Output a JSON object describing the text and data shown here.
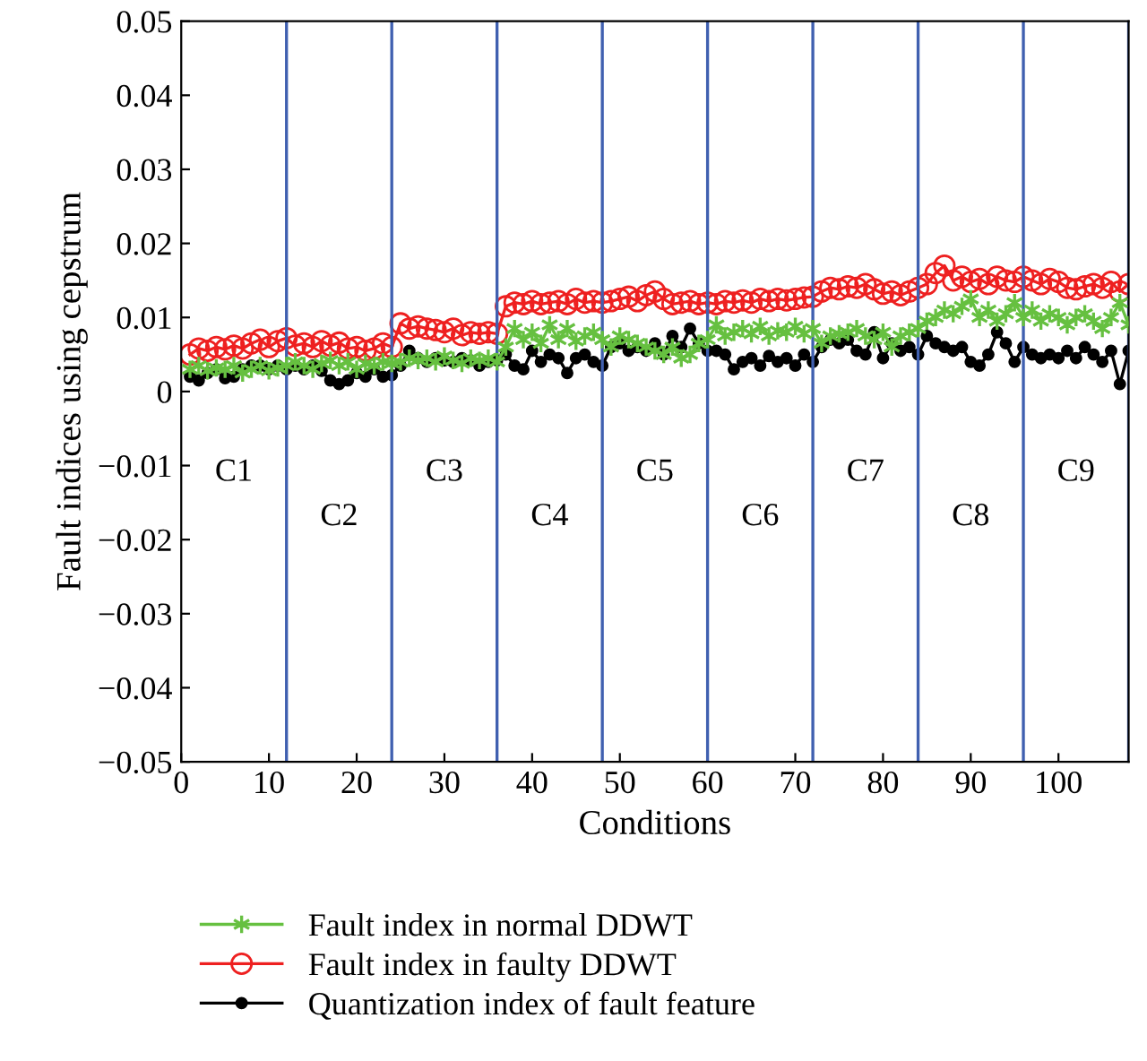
{
  "chart_data": {
    "type": "line",
    "xlabel": "Conditions",
    "ylabel": "Fault indices using cepstrum",
    "x": [
      1,
      2,
      3,
      4,
      5,
      6,
      7,
      8,
      9,
      10,
      11,
      12,
      13,
      14,
      15,
      16,
      17,
      18,
      19,
      20,
      21,
      22,
      23,
      24,
      25,
      26,
      27,
      28,
      29,
      30,
      31,
      32,
      33,
      34,
      35,
      36,
      37,
      38,
      39,
      40,
      41,
      42,
      43,
      44,
      45,
      46,
      47,
      48,
      49,
      50,
      51,
      52,
      53,
      54,
      55,
      56,
      57,
      58,
      59,
      60,
      61,
      62,
      63,
      64,
      65,
      66,
      67,
      68,
      69,
      70,
      71,
      72,
      73,
      74,
      75,
      76,
      77,
      78,
      79,
      80,
      81,
      82,
      83,
      84,
      85,
      86,
      87,
      88,
      89,
      90,
      91,
      92,
      93,
      94,
      95,
      96,
      97,
      98,
      99,
      100,
      101,
      102,
      103,
      104,
      105,
      106,
      107,
      108
    ],
    "series": [
      {
        "name": "Fault index in normal DDWT",
        "color": "#66c040",
        "marker": "cross",
        "values": [
          0.003,
          0.0035,
          0.0028,
          0.0032,
          0.003,
          0.0035,
          0.0025,
          0.003,
          0.0035,
          0.0028,
          0.0032,
          0.0035,
          0.004,
          0.0035,
          0.003,
          0.0038,
          0.0042,
          0.0035,
          0.004,
          0.003,
          0.0038,
          0.0035,
          0.004,
          0.0038,
          0.004,
          0.0045,
          0.0042,
          0.0045,
          0.004,
          0.0048,
          0.0042,
          0.0038,
          0.0045,
          0.0042,
          0.0045,
          0.004,
          0.006,
          0.0085,
          0.007,
          0.008,
          0.0065,
          0.009,
          0.007,
          0.0085,
          0.0068,
          0.0075,
          0.008,
          0.007,
          0.006,
          0.0075,
          0.007,
          0.0065,
          0.006,
          0.0055,
          0.005,
          0.006,
          0.0045,
          0.005,
          0.0065,
          0.007,
          0.009,
          0.0075,
          0.008,
          0.0085,
          0.0078,
          0.0088,
          0.0075,
          0.0082,
          0.008,
          0.0088,
          0.0078,
          0.0085,
          0.0065,
          0.0075,
          0.0078,
          0.008,
          0.0085,
          0.0075,
          0.007,
          0.008,
          0.006,
          0.0075,
          0.008,
          0.0085,
          0.0095,
          0.01,
          0.011,
          0.0105,
          0.0115,
          0.0125,
          0.01,
          0.011,
          0.0095,
          0.0105,
          0.012,
          0.01,
          0.011,
          0.0095,
          0.0105,
          0.01,
          0.009,
          0.01,
          0.0105,
          0.0095,
          0.0085,
          0.01,
          0.012,
          0.009
        ]
      },
      {
        "name": "Fault index in faulty DDWT",
        "color": "#ee2020",
        "marker": "circle",
        "values": [
          0.005,
          0.0058,
          0.0055,
          0.006,
          0.0057,
          0.0062,
          0.0058,
          0.0065,
          0.007,
          0.006,
          0.0068,
          0.0072,
          0.0062,
          0.0065,
          0.006,
          0.0068,
          0.0062,
          0.0066,
          0.0058,
          0.006,
          0.0055,
          0.0058,
          0.0065,
          0.006,
          0.0092,
          0.0085,
          0.0088,
          0.0085,
          0.0083,
          0.008,
          0.0085,
          0.0076,
          0.008,
          0.0078,
          0.008,
          0.0078,
          0.0115,
          0.012,
          0.0118,
          0.0122,
          0.0118,
          0.012,
          0.0122,
          0.0118,
          0.0125,
          0.012,
          0.0122,
          0.012,
          0.0122,
          0.0125,
          0.0128,
          0.0122,
          0.013,
          0.0135,
          0.0125,
          0.0118,
          0.012,
          0.0122,
          0.0118,
          0.012,
          0.0118,
          0.0122,
          0.012,
          0.0123,
          0.012,
          0.0125,
          0.0122,
          0.0125,
          0.0123,
          0.0125,
          0.0127,
          0.0128,
          0.0135,
          0.014,
          0.0138,
          0.0142,
          0.014,
          0.0145,
          0.0138,
          0.0132,
          0.0135,
          0.013,
          0.0135,
          0.014,
          0.0145,
          0.016,
          0.017,
          0.015,
          0.0155,
          0.0148,
          0.0152,
          0.0145,
          0.0155,
          0.015,
          0.0148,
          0.0155,
          0.015,
          0.0145,
          0.0152,
          0.0148,
          0.014,
          0.0138,
          0.0142,
          0.0145,
          0.014,
          0.0148,
          0.0135,
          0.0145
        ]
      },
      {
        "name": "Quantization index of fault feature",
        "color": "#000000",
        "marker": "circle",
        "values": [
          0.002,
          0.0015,
          0.0025,
          0.003,
          0.0018,
          0.002,
          0.003,
          0.0035,
          0.0035,
          0.003,
          0.0035,
          0.003,
          0.0035,
          0.003,
          0.0035,
          0.0028,
          0.0015,
          0.001,
          0.0015,
          0.0025,
          0.002,
          0.003,
          0.002,
          0.0022,
          0.0035,
          0.0055,
          0.0045,
          0.004,
          0.0045,
          0.0042,
          0.004,
          0.0045,
          0.0042,
          0.0035,
          0.004,
          0.0042,
          0.005,
          0.0035,
          0.003,
          0.0055,
          0.004,
          0.005,
          0.0045,
          0.0025,
          0.0045,
          0.005,
          0.004,
          0.0035,
          0.006,
          0.0065,
          0.0055,
          0.006,
          0.0055,
          0.0065,
          0.005,
          0.0075,
          0.006,
          0.0085,
          0.0065,
          0.0055,
          0.0055,
          0.005,
          0.003,
          0.004,
          0.0045,
          0.0035,
          0.0048,
          0.004,
          0.0045,
          0.0035,
          0.005,
          0.004,
          0.006,
          0.007,
          0.0065,
          0.007,
          0.0055,
          0.005,
          0.008,
          0.0045,
          0.0065,
          0.0055,
          0.006,
          0.005,
          0.0075,
          0.0065,
          0.006,
          0.0055,
          0.006,
          0.004,
          0.0035,
          0.005,
          0.008,
          0.0065,
          0.004,
          0.006,
          0.005,
          0.0045,
          0.005,
          0.0045,
          0.0055,
          0.0045,
          0.006,
          0.005,
          0.004,
          0.0055,
          0.001,
          0.0055
        ]
      }
    ],
    "xlim": [
      0,
      108
    ],
    "xticks": [
      0,
      10,
      20,
      30,
      40,
      50,
      60,
      70,
      80,
      90,
      100
    ],
    "ylim": [
      -0.05,
      0.05
    ],
    "yticks": [
      {
        "value": -0.05,
        "label": "−0.05"
      },
      {
        "value": -0.04,
        "label": "−0.04"
      },
      {
        "value": -0.03,
        "label": "−0.03"
      },
      {
        "value": -0.02,
        "label": "−0.02"
      },
      {
        "value": -0.01,
        "label": "−0.01"
      },
      0,
      0.01,
      0.02,
      0.03,
      0.04,
      0.05
    ],
    "ref_lines": [
      {
        "axis": "x",
        "value": 12,
        "color": "#4060b0"
      },
      {
        "axis": "x",
        "value": 24,
        "color": "#4060b0"
      },
      {
        "axis": "x",
        "value": 36,
        "color": "#4060b0"
      },
      {
        "axis": "x",
        "value": 48,
        "color": "#4060b0"
      },
      {
        "axis": "x",
        "value": 60,
        "color": "#4060b0"
      },
      {
        "axis": "x",
        "value": 72,
        "color": "#4060b0"
      },
      {
        "axis": "x",
        "value": 84,
        "color": "#4060b0"
      },
      {
        "axis": "x",
        "value": 96,
        "color": "#4060b0"
      },
      {
        "axis": "x",
        "value": 108,
        "color": "#4060b0"
      }
    ],
    "annotations": [
      "C1",
      "C2",
      "C3",
      "C4",
      "C5",
      "C6",
      "C7",
      "C8",
      "C9"
    ],
    "grid": false,
    "legend": "bottom",
    "line_style": "solid"
  }
}
